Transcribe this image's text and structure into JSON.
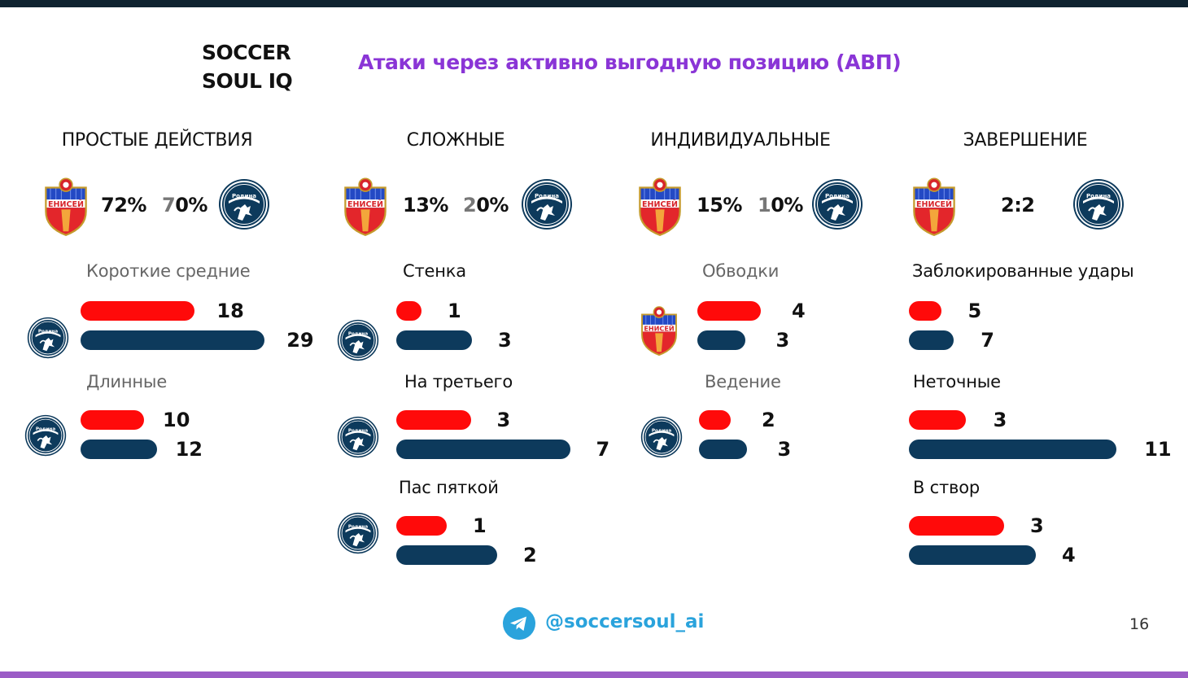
{
  "brand": {
    "line1": "SOCCER",
    "line2": "SOUL IQ"
  },
  "title": "Атаки через активно выгодную позицию (АВП)",
  "teams": {
    "home": {
      "name": "ЕНИСЕЙ",
      "color": "#ff0a0a"
    },
    "away": {
      "name": "Родина",
      "color": "#0d3a5c"
    }
  },
  "sections": [
    {
      "title": "ПРОСТЫЕ ДЕЙСТВИЯ",
      "home_pct": "72%",
      "away_pct": "70%"
    },
    {
      "title": "СЛОЖНЫЕ",
      "home_pct": "13%",
      "away_pct": "20%"
    },
    {
      "title": "ИНДИВИДУАЛЬНЫЕ",
      "home_pct": "15%",
      "away_pct": "10%"
    },
    {
      "title": "ЗАВЕРШЕНИЕ",
      "score": "2:2"
    }
  ],
  "chart_data": {
    "type": "bar",
    "groups": [
      {
        "section": "ПРОСТЫЕ ДЕЙСТВИЯ",
        "metric": "Короткие  средние",
        "series": [
          {
            "name": "ЕНИСЕЙ",
            "value": 18
          },
          {
            "name": "Родина",
            "value": 29
          }
        ]
      },
      {
        "section": "ПРОСТЫЕ ДЕЙСТВИЯ",
        "metric": "Длинные",
        "series": [
          {
            "name": "ЕНИСЕЙ",
            "value": 10
          },
          {
            "name": "Родина",
            "value": 12
          }
        ]
      },
      {
        "section": "СЛОЖНЫЕ",
        "metric": "Стенка",
        "series": [
          {
            "name": "ЕНИСЕЙ",
            "value": 1
          },
          {
            "name": "Родина",
            "value": 3
          }
        ]
      },
      {
        "section": "СЛОЖНЫЕ",
        "metric": "На третьего",
        "series": [
          {
            "name": "ЕНИСЕЙ",
            "value": 3
          },
          {
            "name": "Родина",
            "value": 7
          }
        ]
      },
      {
        "section": "СЛОЖНЫЕ",
        "metric": "Пас  пяткой",
        "series": [
          {
            "name": "ЕНИСЕЙ",
            "value": 1
          },
          {
            "name": "Родина",
            "value": 2
          }
        ]
      },
      {
        "section": "ИНДИВИДУАЛЬНЫЕ",
        "metric": "Обводки",
        "series": [
          {
            "name": "ЕНИСЕЙ",
            "value": 4
          },
          {
            "name": "Родина",
            "value": 3
          }
        ]
      },
      {
        "section": "ИНДИВИДУАЛЬНЫЕ",
        "metric": "Ведение",
        "series": [
          {
            "name": "ЕНИСЕЙ",
            "value": 2
          },
          {
            "name": "Родина",
            "value": 3
          }
        ]
      },
      {
        "section": "ЗАВЕРШЕНИЕ",
        "metric": "Заблокированные удары",
        "series": [
          {
            "name": "ЕНИСЕЙ",
            "value": 5
          },
          {
            "name": "Родина",
            "value": 7
          }
        ]
      },
      {
        "section": "ЗАВЕРШЕНИЕ",
        "metric": "Неточные",
        "series": [
          {
            "name": "ЕНИСЕЙ",
            "value": 3
          },
          {
            "name": "Родина",
            "value": 11
          }
        ]
      },
      {
        "section": "ЗАВЕРШЕНИЕ",
        "metric": "В створ",
        "series": [
          {
            "name": "ЕНИСЕЙ",
            "value": 3
          },
          {
            "name": "Родина",
            "value": 4
          }
        ]
      }
    ]
  },
  "footer": {
    "handle": "@soccersoul_ai",
    "telegram_icon": "telegram-icon",
    "page_number": "16"
  }
}
